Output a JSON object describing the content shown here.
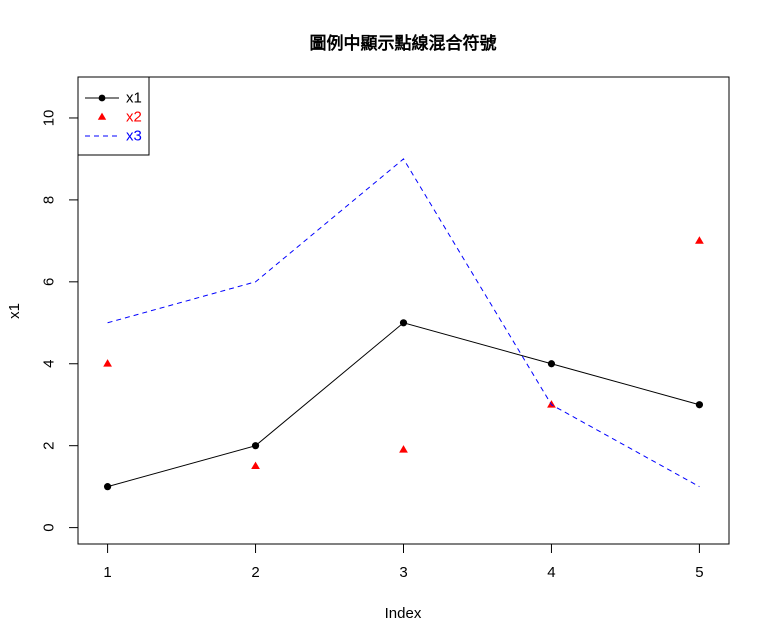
{
  "chart_data": {
    "type": "line",
    "title": "圖例中顯示點線混合符號",
    "xlabel": "Index",
    "ylabel": "x1",
    "x": [
      1,
      2,
      3,
      4,
      5
    ],
    "xlim": [
      0.8,
      5.2
    ],
    "ylim": [
      -0.4,
      11
    ],
    "xticks": [
      "1",
      "2",
      "3",
      "4",
      "5"
    ],
    "yticks": [
      "0",
      "2",
      "4",
      "6",
      "8",
      "10"
    ],
    "series": [
      {
        "name": "x1",
        "style": "line+points",
        "marker": "circle",
        "color": "#000000",
        "values": [
          1,
          2,
          5,
          4,
          3
        ]
      },
      {
        "name": "x2",
        "style": "points",
        "marker": "triangle",
        "color": "#ff0000",
        "values": [
          4,
          1.5,
          1.9,
          3,
          7
        ]
      },
      {
        "name": "x3",
        "style": "dashed-line",
        "marker": "none",
        "color": "#0000ff",
        "values": [
          5,
          6,
          9,
          3,
          1
        ]
      }
    ],
    "legend_position": "top-left",
    "grid": false
  }
}
